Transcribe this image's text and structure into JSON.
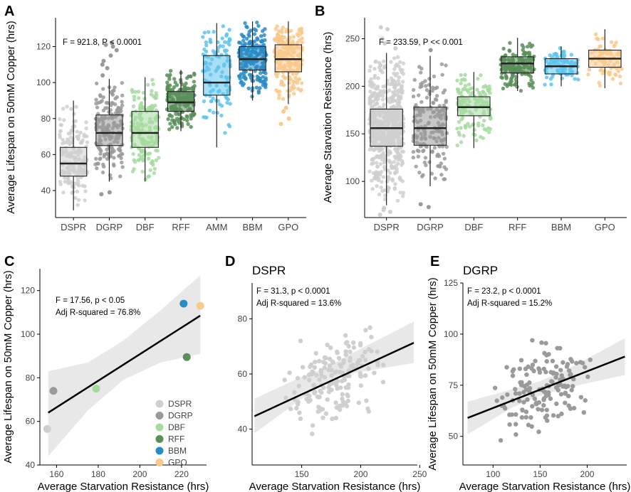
{
  "chart_data": [
    {
      "panel": "A",
      "type": "boxplot",
      "categories": [
        "DSPR",
        "DGRP",
        "DBF",
        "RFF",
        "AMM",
        "BBM",
        "GPO"
      ],
      "colors": [
        "#cfcfcf",
        "#9a9a9a",
        "#a6dba0",
        "#5a8f5a",
        "#5ec4ee",
        "#2a8cc4",
        "#f9c98c"
      ],
      "boxes": [
        {
          "name": "DSPR",
          "min": 29,
          "q1": 48,
          "median": 55,
          "q3": 64,
          "max": 90,
          "n": 170,
          "outliers": []
        },
        {
          "name": "DGRP",
          "min": 45,
          "q1": 65,
          "median": 72,
          "q3": 82,
          "max": 102,
          "n": 180,
          "outliers": [
            38,
            39,
            104,
            108,
            110,
            112,
            115,
            118,
            120,
            121,
            122
          ]
        },
        {
          "name": "DBF",
          "min": 45,
          "q1": 64,
          "median": 72,
          "q3": 84,
          "max": 103,
          "n": 170,
          "outliers": []
        },
        {
          "name": "RFF",
          "min": 73,
          "q1": 84,
          "median": 89,
          "q3": 95,
          "max": 107,
          "n": 190,
          "outliers": []
        },
        {
          "name": "AMM",
          "min": 64,
          "q1": 93,
          "median": 100,
          "q3": 115,
          "max": 133,
          "n": 110,
          "outliers": []
        },
        {
          "name": "BBM",
          "min": 90,
          "q1": 107,
          "median": 113,
          "q3": 120,
          "max": 134,
          "n": 210,
          "outliers": []
        },
        {
          "name": "GPO",
          "min": 88,
          "q1": 106,
          "median": 113,
          "q3": 121,
          "max": 134,
          "n": 200,
          "outliers": [
            77,
            80,
            84,
            86
          ]
        }
      ],
      "annotation": "F = 921.8, P < 0.0001",
      "ylabel": "Average Lifespan on 50mM Copper (hrs)",
      "xlabel": "",
      "ylim": [
        25,
        136
      ],
      "yticks": [
        40,
        60,
        80,
        100,
        120
      ]
    },
    {
      "panel": "B",
      "type": "boxplot",
      "categories": [
        "DSPR",
        "DGRP",
        "DBF",
        "RFF",
        "BBM",
        "GPO"
      ],
      "colors": [
        "#cfcfcf",
        "#9a9a9a",
        "#a6dba0",
        "#5a8f5a",
        "#5ec4ee",
        "#f9c98c"
      ],
      "boxes": [
        {
          "name": "DSPR",
          "min": 75,
          "q1": 137,
          "median": 156,
          "q3": 176,
          "max": 235,
          "n": 600,
          "outliers": [
            65,
            68,
            70,
            72,
            240,
            245,
            250,
            260,
            262
          ]
        },
        {
          "name": "DGRP",
          "min": 95,
          "q1": 138,
          "median": 156,
          "q3": 178,
          "max": 232,
          "n": 180,
          "outliers": [
            73,
            76,
            238
          ]
        },
        {
          "name": "DBF",
          "min": 135,
          "q1": 169,
          "median": 178,
          "q3": 189,
          "max": 215,
          "n": 150,
          "outliers": []
        },
        {
          "name": "RFF",
          "min": 195,
          "q1": 214,
          "median": 224,
          "q3": 231,
          "max": 251,
          "n": 160,
          "outliers": []
        },
        {
          "name": "BBM",
          "min": 200,
          "q1": 213,
          "median": 221,
          "q3": 229,
          "max": 242,
          "n": 90,
          "outliers": []
        },
        {
          "name": "GPO",
          "min": 198,
          "q1": 220,
          "median": 229,
          "q3": 238,
          "max": 260,
          "n": 70,
          "outliers": []
        }
      ],
      "annotation": "F = 233.59, P << 0.001",
      "ylabel": "Average Starvation Resistance (hrs)",
      "xlabel": "",
      "ylim": [
        62,
        272
      ],
      "yticks": [
        100,
        150,
        200,
        250
      ]
    },
    {
      "panel": "C",
      "type": "scatter",
      "points": [
        {
          "name": "DSPR",
          "x": 155.5,
          "y": 56.5,
          "color": "#cfcfcf"
        },
        {
          "name": "DGRP",
          "x": 158.5,
          "y": 74,
          "color": "#9a9a9a"
        },
        {
          "name": "DBF",
          "x": 179,
          "y": 75,
          "color": "#a6dba0"
        },
        {
          "name": "RFF",
          "x": 222.5,
          "y": 89.5,
          "color": "#5a8f5a"
        },
        {
          "name": "BBM",
          "x": 221,
          "y": 114,
          "color": "#2a8cc4"
        },
        {
          "name": "GPO",
          "x": 229,
          "y": 113,
          "color": "#f9c98c"
        }
      ],
      "fit": {
        "x": [
          156,
          229
        ],
        "y": [
          64,
          108.5
        ]
      },
      "ci_lower": [
        [
          156,
          44
        ],
        [
          175,
          65
        ],
        [
          192,
          79
        ],
        [
          210,
          87
        ],
        [
          229,
          91
        ]
      ],
      "ci_upper": [
        [
          156,
          83
        ],
        [
          175,
          87
        ],
        [
          192,
          97
        ],
        [
          210,
          111
        ],
        [
          229,
          127
        ]
      ],
      "legend": [
        "DSPR",
        "DGRP",
        "DBF",
        "RFF",
        "BBM",
        "GPO"
      ],
      "annotation": [
        "F = 17.56, p < 0.05",
        "Adj R-squared = 76.8%"
      ],
      "xlabel": "Average Starvation Resistance (hrs)",
      "ylabel": "Average Lifespan on 50mM Copper (hrs)",
      "xlim": [
        152,
        232
      ],
      "ylim": [
        40,
        130
      ],
      "xticks": [
        160,
        180,
        200,
        220
      ],
      "yticks": [
        40,
        60,
        80,
        100,
        120
      ]
    },
    {
      "panel": "D",
      "type": "scatter",
      "title": "DSPR",
      "point_color": "#cfcfcf",
      "n_points": 170,
      "fit": {
        "x": [
          110,
          245
        ],
        "y": [
          44.7,
          71.3
        ]
      },
      "ci_lower": [
        [
          110,
          38.5
        ],
        [
          150,
          51
        ],
        [
          170,
          56.6
        ],
        [
          190,
          60
        ],
        [
          245,
          64
        ]
      ],
      "ci_upper": [
        [
          110,
          51
        ],
        [
          150,
          59
        ],
        [
          170,
          62
        ],
        [
          190,
          67
        ],
        [
          245,
          79
        ]
      ],
      "annotation": [
        "F = 31.3, p < 0.0001",
        "Adj R-squared = 13.6%"
      ],
      "xlabel": "Average Starvation Resistance (hrs)",
      "ylabel": "",
      "xlim": [
        108,
        248
      ],
      "ylim": [
        27,
        93
      ],
      "xticks": [
        150,
        200,
        250
      ],
      "yticks": [
        40,
        60,
        80
      ]
    },
    {
      "panel": "E",
      "type": "scatter",
      "title": "DGRP",
      "point_color": "#9a9a9a",
      "n_points": 150,
      "fit": {
        "x": [
          73,
          240
        ],
        "y": [
          59,
          89
        ]
      },
      "ci_lower": [
        [
          73,
          51
        ],
        [
          120,
          64
        ],
        [
          150,
          70
        ],
        [
          180,
          74
        ],
        [
          240,
          80
        ]
      ],
      "ci_upper": [
        [
          73,
          67
        ],
        [
          120,
          73
        ],
        [
          150,
          77
        ],
        [
          180,
          83
        ],
        [
          240,
          98
        ]
      ],
      "annotation": [
        "F = 23.2, p < 0.0001",
        "Adj R-squared = 15.2%"
      ],
      "xlabel": "Average Starvation Resistance (hrs)",
      "ylabel": "Average Lifespan on 50mM Copper (hrs)",
      "xlim": [
        68,
        242
      ],
      "ylim": [
        36,
        125
      ],
      "xticks": [
        100,
        150,
        200
      ],
      "yticks": [
        50,
        75,
        100,
        125
      ]
    }
  ]
}
